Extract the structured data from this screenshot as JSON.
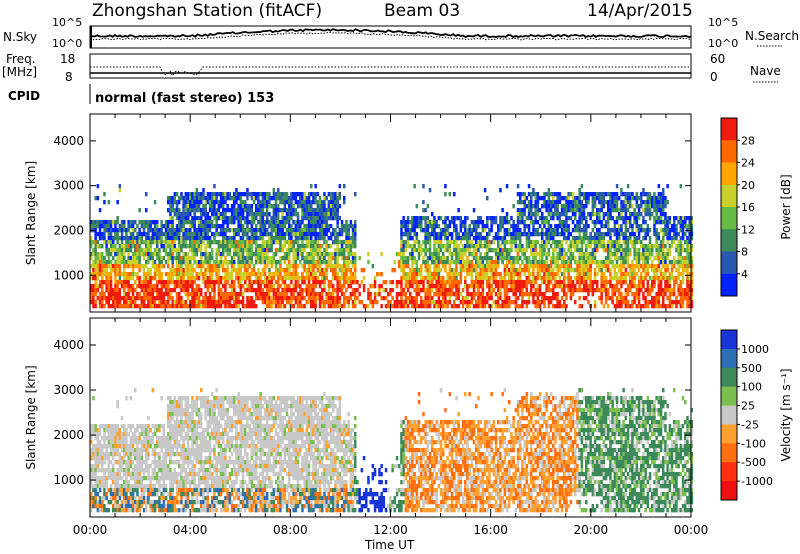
{
  "header": {
    "station": "Zhongshan Station (fitACF)",
    "beam": "Beam 03",
    "date": "14/Apr/2015"
  },
  "sky_panel": {
    "left_label": "N.Sky",
    "right_label": "N.Search",
    "y_ticks_left": [
      "10^5",
      "10^0"
    ],
    "y_ticks_right": [
      "10^5",
      "10^0"
    ]
  },
  "freq_panel": {
    "left_label_1": "Freq.",
    "left_label_2": "[MHz]",
    "right_label": "Nave",
    "y_ticks_left": [
      "18",
      "8"
    ],
    "y_ticks_right": [
      "60",
      "0"
    ]
  },
  "cpid": {
    "label": "CPID",
    "text": "normal (fast stereo) 153"
  },
  "time_axis": {
    "label": "Time UT",
    "ticks": [
      "00:00",
      "04:00",
      "08:00",
      "12:00",
      "16:00",
      "20:00",
      "00:00"
    ]
  },
  "chart_data": [
    {
      "type": "heatmap",
      "title": "Power",
      "ylabel": "Slant Range [km]",
      "xlabel": "",
      "x_range_hours": [
        0,
        24
      ],
      "ylim": [
        180,
        4600
      ],
      "y_ticks": [
        1000,
        2000,
        3000,
        4000
      ],
      "colorbar": {
        "label": "Power [dB]",
        "ticks": [
          "4",
          "8",
          "12",
          "16",
          "20",
          "24",
          "28"
        ],
        "range": [
          0,
          32
        ],
        "colors": [
          "#0022ff",
          "#2858b0",
          "#3c8a5a",
          "#66bb44",
          "#c8d02c",
          "#ffa600",
          "#ff6800",
          "#ee1c10"
        ]
      }
    },
    {
      "type": "heatmap",
      "title": "Velocity",
      "ylabel": "Slant Range [km]",
      "xlabel": "Time UT",
      "x_range_hours": [
        0,
        24
      ],
      "ylim": [
        180,
        4600
      ],
      "y_ticks": [
        1000,
        2000,
        3000,
        4000
      ],
      "colorbar": {
        "label": "Velocity [m s⁻¹]",
        "ticks": [
          "1000",
          "500",
          "100",
          "25",
          "-25",
          "-100",
          "-500",
          "-1000"
        ],
        "colors": [
          "#1836d8",
          "#2c6fb5",
          "#3c8a5a",
          "#7bc04e",
          "#c8c8c8",
          "#ffa030",
          "#ff6e10",
          "#ff3010",
          "#ee1010"
        ]
      }
    }
  ]
}
